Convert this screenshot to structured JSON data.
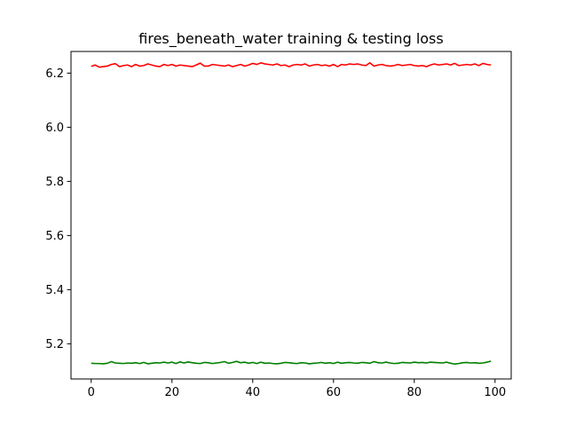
{
  "chart_data": {
    "type": "line",
    "title": "fires_beneath_water training & testing loss",
    "xlabel": "",
    "ylabel": "",
    "xlim": [
      -5,
      104
    ],
    "ylim": [
      5.07,
      6.28
    ],
    "x_ticks": [
      0,
      20,
      40,
      60,
      80,
      100
    ],
    "y_ticks": [
      5.2,
      5.4,
      5.6,
      5.8,
      6.0,
      6.2
    ],
    "x_tick_labels": [
      "0",
      "20",
      "40",
      "60",
      "80",
      "100"
    ],
    "y_tick_labels": [
      "5.2",
      "5.4",
      "5.6",
      "5.8",
      "6.0",
      "6.2"
    ],
    "grid": false,
    "series": [
      {
        "color": "#ff0000",
        "x": [
          0,
          1,
          2,
          3,
          4,
          5,
          6,
          7,
          8,
          9,
          10,
          11,
          12,
          13,
          14,
          15,
          16,
          17,
          18,
          19,
          20,
          21,
          22,
          23,
          24,
          25,
          26,
          27,
          28,
          29,
          30,
          31,
          32,
          33,
          34,
          35,
          36,
          37,
          38,
          39,
          40,
          41,
          42,
          43,
          44,
          45,
          46,
          47,
          48,
          49,
          50,
          51,
          52,
          53,
          54,
          55,
          56,
          57,
          58,
          59,
          60,
          61,
          62,
          63,
          64,
          65,
          66,
          67,
          68,
          69,
          70,
          71,
          72,
          73,
          74,
          75,
          76,
          77,
          78,
          79,
          80,
          81,
          82,
          83,
          84,
          85,
          86,
          87,
          88,
          89,
          90,
          91,
          92,
          93,
          94,
          95,
          96,
          97,
          98,
          99
        ],
        "values": [
          6.225,
          6.23,
          6.222,
          6.224,
          6.226,
          6.232,
          6.235,
          6.224,
          6.228,
          6.23,
          6.224,
          6.232,
          6.226,
          6.228,
          6.234,
          6.23,
          6.226,
          6.224,
          6.232,
          6.228,
          6.232,
          6.226,
          6.23,
          6.228,
          6.226,
          6.224,
          6.23,
          6.237,
          6.226,
          6.226,
          6.232,
          6.23,
          6.228,
          6.226,
          6.23,
          6.224,
          6.228,
          6.232,
          6.226,
          6.23,
          6.236,
          6.232,
          6.238,
          6.234,
          6.232,
          6.23,
          6.234,
          6.228,
          6.23,
          6.224,
          6.23,
          6.232,
          6.23,
          6.234,
          6.226,
          6.23,
          6.232,
          6.228,
          6.23,
          6.226,
          6.232,
          6.224,
          6.232,
          6.23,
          6.234,
          6.232,
          6.234,
          6.23,
          6.228,
          6.238,
          6.226,
          6.23,
          6.232,
          6.228,
          6.226,
          6.228,
          6.232,
          6.228,
          6.23,
          6.232,
          6.228,
          6.226,
          6.228,
          6.224,
          6.23,
          6.234,
          6.23,
          6.232,
          6.234,
          6.23,
          6.236,
          6.228,
          6.23,
          6.232,
          6.23,
          6.234,
          6.228,
          6.236,
          6.232,
          6.23
        ]
      },
      {
        "color": "#008000",
        "x": [
          0,
          1,
          2,
          3,
          4,
          5,
          6,
          7,
          8,
          9,
          10,
          11,
          12,
          13,
          14,
          15,
          16,
          17,
          18,
          19,
          20,
          21,
          22,
          23,
          24,
          25,
          26,
          27,
          28,
          29,
          30,
          31,
          32,
          33,
          34,
          35,
          36,
          37,
          38,
          39,
          40,
          41,
          42,
          43,
          44,
          45,
          46,
          47,
          48,
          49,
          50,
          51,
          52,
          53,
          54,
          55,
          56,
          57,
          58,
          59,
          60,
          61,
          62,
          63,
          64,
          65,
          66,
          67,
          68,
          69,
          70,
          71,
          72,
          73,
          74,
          75,
          76,
          77,
          78,
          79,
          80,
          81,
          82,
          83,
          84,
          85,
          86,
          87,
          88,
          89,
          90,
          91,
          92,
          93,
          94,
          95,
          96,
          97,
          98,
          99
        ],
        "values": [
          5.128,
          5.127,
          5.127,
          5.126,
          5.128,
          5.134,
          5.129,
          5.128,
          5.127,
          5.129,
          5.128,
          5.13,
          5.127,
          5.131,
          5.126,
          5.128,
          5.13,
          5.129,
          5.132,
          5.129,
          5.132,
          5.127,
          5.133,
          5.129,
          5.133,
          5.13,
          5.128,
          5.127,
          5.131,
          5.13,
          5.127,
          5.129,
          5.131,
          5.134,
          5.128,
          5.131,
          5.135,
          5.13,
          5.132,
          5.128,
          5.131,
          5.127,
          5.132,
          5.128,
          5.129,
          5.127,
          5.126,
          5.128,
          5.131,
          5.13,
          5.128,
          5.127,
          5.13,
          5.129,
          5.126,
          5.128,
          5.129,
          5.131,
          5.128,
          5.13,
          5.127,
          5.132,
          5.128,
          5.13,
          5.131,
          5.129,
          5.128,
          5.131,
          5.13,
          5.128,
          5.134,
          5.13,
          5.129,
          5.132,
          5.129,
          5.127,
          5.128,
          5.131,
          5.13,
          5.129,
          5.132,
          5.13,
          5.131,
          5.129,
          5.132,
          5.131,
          5.13,
          5.129,
          5.132,
          5.128,
          5.125,
          5.127,
          5.13,
          5.131,
          5.129,
          5.13,
          5.128,
          5.129,
          5.132,
          5.136
        ]
      }
    ]
  }
}
